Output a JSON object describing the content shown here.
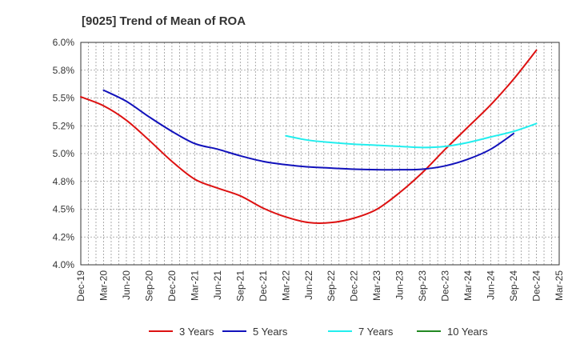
{
  "chart_data": {
    "type": "line",
    "title": "[9025]  Trend of Mean of ROA",
    "xlabel": "",
    "ylabel": "",
    "ylim": [
      4.0,
      6.0
    ],
    "y_ticks": [
      "6.0%",
      "5.8%",
      "5.5%",
      "5.2%",
      "5.0%",
      "4.8%",
      "4.5%",
      "4.2%",
      "4.0%"
    ],
    "y_tick_values": [
      6.0,
      5.75,
      5.5,
      5.25,
      5.0,
      4.75,
      4.5,
      4.25,
      4.0
    ],
    "x_ticks": [
      "Dec-19",
      "Mar-20",
      "Jun-20",
      "Sep-20",
      "Dec-20",
      "Mar-21",
      "Jun-21",
      "Sep-21",
      "Dec-21",
      "Mar-22",
      "Jun-22",
      "Sep-22",
      "Dec-22",
      "Mar-23",
      "Jun-23",
      "Sep-23",
      "Dec-23",
      "Mar-24",
      "Jun-24",
      "Sep-24",
      "Dec-24",
      "Mar-25"
    ],
    "grid": true,
    "legend_position": "bottom",
    "series": [
      {
        "name": "3 Years",
        "color": "#dd1111",
        "start_index": 0,
        "values": [
          5.51,
          5.43,
          5.3,
          5.12,
          4.93,
          4.77,
          4.69,
          4.62,
          4.51,
          4.43,
          4.38,
          4.38,
          4.42,
          4.5,
          4.65,
          4.83,
          5.04,
          5.24,
          5.44,
          5.67,
          5.93
        ]
      },
      {
        "name": "5 Years",
        "color": "#1111bb",
        "start_index": 1,
        "values": [
          5.57,
          5.47,
          5.33,
          5.2,
          5.09,
          5.04,
          4.98,
          4.93,
          4.9,
          4.88,
          4.87,
          4.86,
          4.855,
          4.855,
          4.86,
          4.89,
          4.95,
          5.04,
          5.18
        ]
      },
      {
        "name": "7 Years",
        "color": "#22eeee",
        "start_index": 9,
        "values": [
          5.16,
          5.12,
          5.1,
          5.085,
          5.075,
          5.065,
          5.055,
          5.065,
          5.1,
          5.15,
          5.2,
          5.27
        ]
      },
      {
        "name": "10 Years",
        "color": "#228822",
        "start_index": 0,
        "values": []
      }
    ]
  }
}
